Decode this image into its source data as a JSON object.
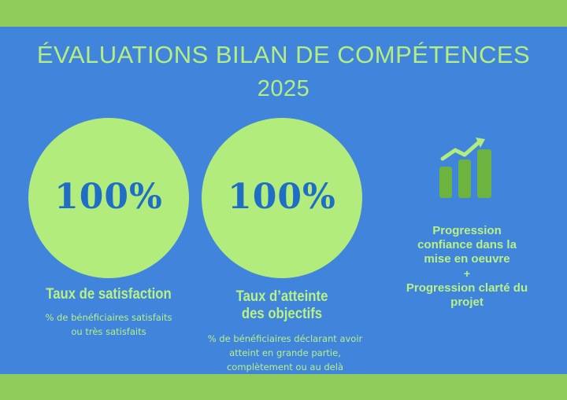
{
  "header": {
    "title_line1": "ÉVALUATIONS BILAN DE COMPÉTENCES",
    "title_line2": "2025"
  },
  "stats": [
    {
      "value": "100%",
      "label": "Taux de satisfaction",
      "description_lines": [
        "% de bénéficiaires satisfaits",
        "ou très satisfaits"
      ]
    },
    {
      "value": "100%",
      "label_lines": [
        "Taux d’atteinte",
        "des objectifs"
      ],
      "description_lines": [
        "% de bénéficiaires déclarant avoir",
        "atteint en grande partie,",
        "complètement ou au delà"
      ]
    }
  ],
  "progress": {
    "icon": "growth-chart-icon",
    "line1": [
      "Progression",
      "confiance dans la",
      "mise en oeuvre"
    ],
    "plus": "+",
    "line2": [
      "Progression clarté du",
      "projet"
    ]
  },
  "colors": {
    "background": "#4184dc",
    "band": "#8fcc5c",
    "circle": "#b2ec7d",
    "accent_text": "#b8f184",
    "percentage": "#1f6dc4"
  }
}
